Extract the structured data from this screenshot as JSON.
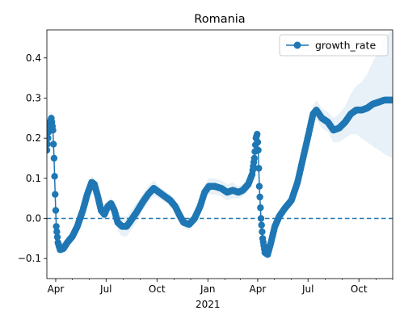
{
  "chart_data": {
    "type": "line",
    "title": "Romania",
    "xlabel": "",
    "ylabel": "",
    "x_unit": "date",
    "xlim": [
      "2020-03-16",
      "2021-12-01"
    ],
    "ylim": [
      -0.15,
      0.47
    ],
    "year_label": "2021",
    "x_ticks": [
      {
        "date": "2020-04-01",
        "label": "Apr"
      },
      {
        "date": "2020-07-01",
        "label": "Jul"
      },
      {
        "date": "2020-10-01",
        "label": "Oct"
      },
      {
        "date": "2021-01-01",
        "label": "Jan"
      },
      {
        "date": "2021-04-01",
        "label": "Apr"
      },
      {
        "date": "2021-07-01",
        "label": "Jul"
      },
      {
        "date": "2021-10-01",
        "label": "Oct"
      }
    ],
    "y_ticks": [
      {
        "value": -0.1,
        "label": "−0.1"
      },
      {
        "value": 0.0,
        "label": "0.0"
      },
      {
        "value": 0.1,
        "label": "0.1"
      },
      {
        "value": 0.2,
        "label": "0.2"
      },
      {
        "value": 0.3,
        "label": "0.3"
      },
      {
        "value": 0.4,
        "label": "0.4"
      }
    ],
    "reference_line": {
      "y": 0.0,
      "style": "dashed"
    },
    "legend": {
      "position": "top-right"
    },
    "series": [
      {
        "name": "growth_rate",
        "color": "#1f77b4",
        "band_color": "#1f77b4",
        "points": [
          [
            "2020-03-16",
            0.17,
            0.15,
            0.19
          ],
          [
            "2020-03-20",
            0.23,
            0.21,
            0.25
          ],
          [
            "2020-03-24",
            0.25,
            0.23,
            0.27
          ],
          [
            "2020-03-27",
            0.22,
            0.2,
            0.24
          ],
          [
            "2020-03-29",
            0.15,
            0.13,
            0.17
          ],
          [
            "2020-03-31",
            0.06,
            0.045,
            0.075
          ],
          [
            "2020-04-02",
            -0.02,
            -0.03,
            -0.01
          ],
          [
            "2020-04-05",
            -0.06,
            -0.07,
            -0.05
          ],
          [
            "2020-04-09",
            -0.078,
            -0.087,
            -0.069
          ],
          [
            "2020-04-15",
            -0.075,
            -0.085,
            -0.065
          ],
          [
            "2020-04-22",
            -0.06,
            -0.07,
            -0.05
          ],
          [
            "2020-05-01",
            -0.045,
            -0.055,
            -0.035
          ],
          [
            "2020-05-10",
            -0.02,
            -0.03,
            -0.01
          ],
          [
            "2020-05-20",
            0.02,
            0.005,
            0.035
          ],
          [
            "2020-05-28",
            0.06,
            0.045,
            0.075
          ],
          [
            "2020-06-05",
            0.09,
            0.075,
            0.105
          ],
          [
            "2020-06-10",
            0.085,
            0.07,
            0.1
          ],
          [
            "2020-06-16",
            0.055,
            0.04,
            0.07
          ],
          [
            "2020-06-22",
            0.02,
            0.005,
            0.035
          ],
          [
            "2020-06-28",
            0.01,
            -0.005,
            0.025
          ],
          [
            "2020-07-04",
            0.03,
            0.015,
            0.045
          ],
          [
            "2020-07-10",
            0.037,
            0.022,
            0.052
          ],
          [
            "2020-07-16",
            0.02,
            0.005,
            0.035
          ],
          [
            "2020-07-22",
            -0.01,
            -0.03,
            0.01
          ],
          [
            "2020-07-30",
            -0.02,
            -0.045,
            0.005
          ],
          [
            "2020-08-07",
            -0.02,
            -0.045,
            0.005
          ],
          [
            "2020-08-15",
            -0.005,
            -0.03,
            0.02
          ],
          [
            "2020-08-25",
            0.015,
            -0.01,
            0.04
          ],
          [
            "2020-09-05",
            0.04,
            0.02,
            0.06
          ],
          [
            "2020-09-15",
            0.06,
            0.04,
            0.08
          ],
          [
            "2020-09-25",
            0.075,
            0.055,
            0.095
          ],
          [
            "2020-10-05",
            0.065,
            0.05,
            0.08
          ],
          [
            "2020-10-15",
            0.055,
            0.04,
            0.07
          ],
          [
            "2020-10-25",
            0.045,
            0.03,
            0.06
          ],
          [
            "2020-11-03",
            0.03,
            0.015,
            0.045
          ],
          [
            "2020-11-10",
            0.01,
            -0.005,
            0.025
          ],
          [
            "2020-11-18",
            -0.01,
            -0.025,
            0.005
          ],
          [
            "2020-11-28",
            -0.015,
            -0.03,
            0.0
          ],
          [
            "2020-12-08",
            0.0,
            -0.015,
            0.015
          ],
          [
            "2020-12-18",
            0.03,
            0.01,
            0.05
          ],
          [
            "2020-12-26",
            0.065,
            0.045,
            0.085
          ],
          [
            "2021-01-03",
            0.08,
            0.06,
            0.1
          ],
          [
            "2021-01-13",
            0.08,
            0.06,
            0.1
          ],
          [
            "2021-01-25",
            0.075,
            0.055,
            0.095
          ],
          [
            "2021-02-05",
            0.065,
            0.045,
            0.085
          ],
          [
            "2021-02-15",
            0.07,
            0.05,
            0.09
          ],
          [
            "2021-02-25",
            0.065,
            0.05,
            0.08
          ],
          [
            "2021-03-05",
            0.07,
            0.055,
            0.085
          ],
          [
            "2021-03-15",
            0.085,
            0.07,
            0.1
          ],
          [
            "2021-03-22",
            0.11,
            0.095,
            0.125
          ],
          [
            "2021-03-26",
            0.15,
            0.135,
            0.165
          ],
          [
            "2021-03-29",
            0.2,
            0.185,
            0.215
          ],
          [
            "2021-03-31",
            0.21,
            0.195,
            0.225
          ],
          [
            "2021-04-02",
            0.17,
            0.155,
            0.185
          ],
          [
            "2021-04-04",
            0.08,
            0.065,
            0.095
          ],
          [
            "2021-04-07",
            0.0,
            -0.01,
            0.01
          ],
          [
            "2021-04-10",
            -0.05,
            -0.06,
            -0.04
          ],
          [
            "2021-04-14",
            -0.085,
            -0.095,
            -0.075
          ],
          [
            "2021-04-19",
            -0.09,
            -0.1,
            -0.08
          ],
          [
            "2021-04-25",
            -0.06,
            -0.07,
            -0.05
          ],
          [
            "2021-05-02",
            -0.02,
            -0.03,
            -0.01
          ],
          [
            "2021-05-10",
            0.005,
            -0.005,
            0.015
          ],
          [
            "2021-05-20",
            0.025,
            0.015,
            0.035
          ],
          [
            "2021-06-01",
            0.045,
            0.035,
            0.055
          ],
          [
            "2021-06-12",
            0.09,
            0.075,
            0.105
          ],
          [
            "2021-06-22",
            0.15,
            0.13,
            0.17
          ],
          [
            "2021-07-02",
            0.21,
            0.19,
            0.23
          ],
          [
            "2021-07-10",
            0.26,
            0.24,
            0.28
          ],
          [
            "2021-07-16",
            0.27,
            0.245,
            0.295
          ],
          [
            "2021-07-26",
            0.25,
            0.225,
            0.275
          ],
          [
            "2021-08-06",
            0.24,
            0.215,
            0.265
          ],
          [
            "2021-08-16",
            0.22,
            0.19,
            0.25
          ],
          [
            "2021-08-26",
            0.225,
            0.19,
            0.26
          ],
          [
            "2021-09-06",
            0.24,
            0.2,
            0.28
          ],
          [
            "2021-09-16",
            0.26,
            0.21,
            0.31
          ],
          [
            "2021-09-26",
            0.27,
            0.21,
            0.33
          ],
          [
            "2021-10-06",
            0.27,
            0.2,
            0.34
          ],
          [
            "2021-10-16",
            0.275,
            0.19,
            0.36
          ],
          [
            "2021-10-26",
            0.285,
            0.18,
            0.39
          ],
          [
            "2021-11-06",
            0.29,
            0.17,
            0.42
          ],
          [
            "2021-11-16",
            0.295,
            0.16,
            0.45
          ],
          [
            "2021-11-30",
            0.295,
            0.15,
            0.47
          ]
        ]
      }
    ]
  }
}
